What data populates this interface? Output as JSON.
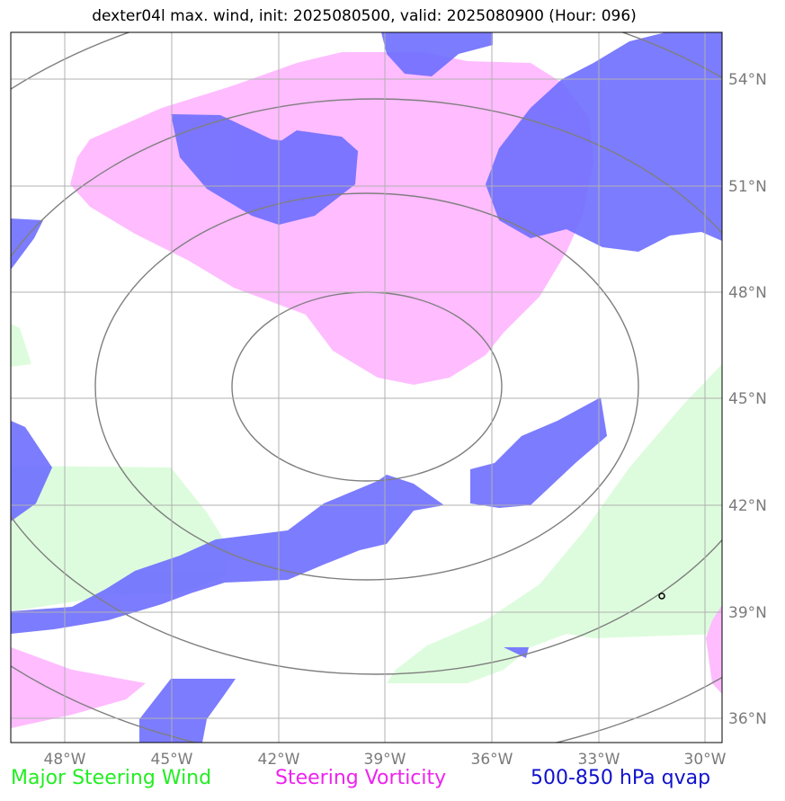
{
  "title": "dexter04l max. wind, init: 2025080500, valid: 2025080900 (Hour: 096)",
  "map": {
    "lon_range": [
      -49.5,
      -29.4
    ],
    "lat_range": [
      35.3,
      55.1
    ],
    "lon_ticks": [
      "48°W",
      "45°W",
      "42°W",
      "39°W",
      "36°W",
      "33°W",
      "30°W"
    ],
    "lat_ticks": [
      "54°N",
      "51°N",
      "48°N",
      "45°N",
      "42°N",
      "39°N",
      "36°N"
    ],
    "grid": true,
    "colors": {
      "steering_wind": "#ddfcdd",
      "vorticity": "#ffbcff",
      "qvap": "#6e6eff",
      "contour": "#7f7f7f",
      "grid": "#b0b0b0"
    }
  },
  "legend": {
    "wind": "Major Steering Wind",
    "vorticity": "Steering Vorticity",
    "qvap": "500-850 hPa qvap"
  }
}
